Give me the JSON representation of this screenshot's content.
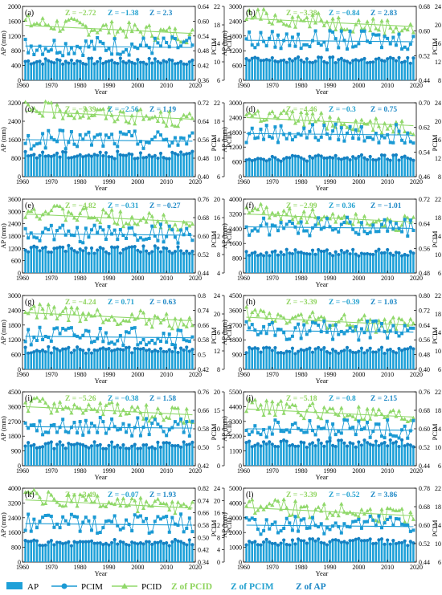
{
  "colors": {
    "ap": "#1ea0d8",
    "pcim": "#1b9ad4",
    "pcid": "#90d86a",
    "z_pcid": "#8fd45e",
    "z_pcim": "#23a1cf",
    "z_ap": "#1e88c6"
  },
  "legend": {
    "ap": "AP",
    "pcim": "PCIM",
    "pcid": "PCID",
    "z_pcid": "Z of PCID",
    "z_pcim": "Z of PCIM",
    "z_ap": "Z of AP"
  },
  "chart_data": [
    {
      "type": "bar",
      "panel": "(a)",
      "xlabel": "Year",
      "ylabel": "AP (mm)",
      "y2label": "PCIM",
      "y3label": "PCID",
      "x": [
        1960,
        2020
      ],
      "xticks": [
        1960,
        1970,
        1980,
        1990,
        2000,
        2010,
        2020
      ],
      "ap_ticks": [
        "0",
        "400",
        "800",
        "1200",
        "1600",
        "2000"
      ],
      "pcim_ticks": [
        "0.36",
        "0.42",
        "0.48",
        "0.54",
        "0.60",
        "0.64"
      ],
      "pcid_ticks": [
        "6",
        "10",
        "14",
        "18",
        "22"
      ],
      "ap_mean": 490,
      "pcim_mean": 0.49,
      "pcid_mean": 17.1,
      "z": {
        "pcid": "Z = −2.72",
        "pcim": "Z = −1.38",
        "ap": "Z = 2.3"
      }
    },
    {
      "type": "bar",
      "panel": "(b)",
      "xlabel": "Year",
      "ylabel": "AP (mm)",
      "y2label": "PCIM",
      "y3label": "PCID",
      "x": [
        1960,
        2020
      ],
      "xticks": [
        1960,
        1970,
        1980,
        1990,
        2000,
        2010,
        2020
      ],
      "ap_ticks": [
        "0",
        "600",
        "1200",
        "1800",
        "2400",
        "3000"
      ],
      "pcim_ticks": [
        "0.44",
        "0.52",
        "0.60",
        "0.68"
      ],
      "pcid_ticks": [
        "8",
        "12",
        "16",
        "20",
        "24"
      ],
      "ap_mean": 780,
      "pcim_mean": 0.57,
      "pcid_mean": 20.6,
      "z": {
        "pcid": "Z = −3.38",
        "pcim": "Z = −0.84",
        "ap": "Z = 2.83"
      }
    },
    {
      "type": "bar",
      "panel": "(c)",
      "xlabel": "Year",
      "ylabel": "AP (mm)",
      "y2label": "PCIM",
      "y3label": "PCID",
      "x": [
        1960,
        2020
      ],
      "xticks": [
        1960,
        1970,
        1980,
        1990,
        2000,
        2010,
        2020
      ],
      "ap_ticks": [
        "0",
        "800",
        "1600",
        "2400",
        "3200"
      ],
      "pcim_ticks": [
        "0.40",
        "0.48",
        "0.56",
        "0.64",
        "0.72"
      ],
      "pcid_ticks": [
        "6",
        "10",
        "14",
        "18",
        "22"
      ],
      "ap_mean": 900,
      "pcim_mean": 0.56,
      "pcid_mean": 19.4,
      "z": {
        "pcid": "Z = −5.39",
        "pcim": "Z = −2.56",
        "ap": "Z = 1.19"
      }
    },
    {
      "type": "bar",
      "panel": "(d)",
      "xlabel": "Year",
      "ylabel": "AP (mm)",
      "y2label": "PCIM",
      "y3label": "PCID",
      "x": [
        1960,
        2020
      ],
      "xticks": [
        1960,
        1970,
        1980,
        1990,
        2000,
        2010,
        2020
      ],
      "ap_ticks": [
        "0",
        "600",
        "1200",
        "1800",
        "2400",
        "3000"
      ],
      "pcim_ticks": [
        "0.46",
        "0.54",
        "0.62",
        "0.70"
      ],
      "pcid_ticks": [
        "8",
        "12",
        "16",
        "20",
        "24"
      ],
      "ap_mean": 720,
      "pcim_mean": 0.6,
      "pcid_mean": 20.0,
      "z": {
        "pcid": "Z = −4.46",
        "pcim": "Z = −0.3",
        "ap": "Z = 0.75"
      }
    },
    {
      "type": "bar",
      "panel": "(e)",
      "xlabel": "Year",
      "ylabel": "AP (mm)",
      "y2label": "PCIM",
      "y3label": "PCID",
      "x": [
        1960,
        2020
      ],
      "xticks": [
        1960,
        1970,
        1980,
        1990,
        2000,
        2010,
        2020
      ],
      "ap_ticks": [
        "0",
        "600",
        "1200",
        "1800",
        "2400",
        "3000",
        "3600"
      ],
      "pcim_ticks": [
        "0.44",
        "0.52",
        "0.60",
        "0.68",
        "0.76"
      ],
      "pcid_ticks": [
        "4",
        "8",
        "12",
        "16",
        "20"
      ],
      "ap_mean": 1100,
      "pcim_mean": 0.61,
      "pcid_mean": 16.0,
      "z": {
        "pcid": "Z = −4.82",
        "pcim": "Z = −0.31",
        "ap": "Z = −0.27"
      }
    },
    {
      "type": "bar",
      "panel": "(f)",
      "xlabel": "Year",
      "ylabel": "AP (mm)",
      "y2label": "PCIM",
      "y3label": "PCID",
      "x": [
        1960,
        2020
      ],
      "xticks": [
        1960,
        1970,
        1980,
        1990,
        2000,
        2010,
        2020
      ],
      "ap_ticks": [
        "0",
        "800",
        "1600",
        "2400",
        "3200",
        "4000"
      ],
      "pcim_ticks": [
        "0.48",
        "0.56",
        "0.64",
        "0.72"
      ],
      "pcid_ticks": [
        "6",
        "10",
        "14",
        "18",
        "22"
      ],
      "ap_mean": 1050,
      "pcim_mean": 0.63,
      "pcid_mean": 18.0,
      "z": {
        "pcid": "Z = −2.99",
        "pcim": "Z = 0.36",
        "ap": "Z = −1.01"
      }
    },
    {
      "type": "bar",
      "panel": "(g)",
      "xlabel": "Year",
      "ylabel": "AP (mm)",
      "y2label": "PCIM",
      "y3label": "PCID",
      "x": [
        1960,
        2020
      ],
      "xticks": [
        1960,
        1970,
        1980,
        1990,
        2000,
        2010,
        2020
      ],
      "ap_ticks": [
        "0",
        "600",
        "1200",
        "1800",
        "2400",
        "3000"
      ],
      "pcim_ticks": [
        "0.42",
        "0.5",
        "0.58",
        "0.66",
        "0.74",
        "0.8"
      ],
      "pcid_ticks": [
        "8",
        "12",
        "16",
        "20",
        "24"
      ],
      "ap_mean": 750,
      "pcim_mean": 0.59,
      "pcid_mean": 19.5,
      "z": {
        "pcid": "Z = −4.24",
        "pcim": "Z = 0.71",
        "ap": "Z = 0.63"
      }
    },
    {
      "type": "bar",
      "panel": "(h)",
      "xlabel": "Year",
      "ylabel": "AP (mm)",
      "y2label": "PCIM",
      "y3label": "PCID",
      "x": [
        1960,
        2020
      ],
      "xticks": [
        1960,
        1970,
        1980,
        1990,
        2000,
        2010,
        2020
      ],
      "ap_ticks": [
        "0",
        "900",
        "1800",
        "2700",
        "3600",
        "4500"
      ],
      "pcim_ticks": [
        "0.40",
        "0.48",
        "0.56",
        "0.64",
        "0.72",
        "0.80"
      ],
      "pcid_ticks": [
        "6",
        "10",
        "14",
        "18",
        "22"
      ],
      "ap_mean": 1100,
      "pcim_mean": 0.61,
      "pcid_mean": 16.5,
      "z": {
        "pcid": "Z = −3.39",
        "pcim": "Z = −0.39",
        "ap": "Z = 1.03"
      }
    },
    {
      "type": "bar",
      "panel": "(i)",
      "xlabel": "Year",
      "ylabel": "AP (mm)",
      "y2label": "PCIM",
      "y3label": "PCID",
      "x": [
        1960,
        2020
      ],
      "xticks": [
        1960,
        1970,
        1980,
        1990,
        2000,
        2010,
        2020
      ],
      "ap_ticks": [
        "0",
        "900",
        "1800",
        "2700",
        "3600",
        "4500"
      ],
      "pcim_ticks": [
        "0.42",
        "0.50",
        "0.58",
        "0.66",
        "0.76"
      ],
      "pcid_ticks": [
        "0",
        "5",
        "10",
        "15",
        "20"
      ],
      "ap_mean": 1200,
      "pcim_mean": 0.6,
      "pcid_mean": 15.0,
      "z": {
        "pcid": "Z = −5.26",
        "pcim": "Z = −0.38",
        "ap": "Z = 1.58"
      }
    },
    {
      "type": "bar",
      "panel": "(j)",
      "xlabel": "Year",
      "ylabel": "AP (mm)",
      "y2label": "PCIM",
      "y3label": "PCID",
      "x": [
        1960,
        2020
      ],
      "xticks": [
        1960,
        1970,
        1980,
        1990,
        2000,
        2010,
        2020
      ],
      "ap_ticks": [
        "0",
        "1100",
        "2200",
        "3300",
        "4400",
        "5500"
      ],
      "pcim_ticks": [
        "0.44",
        "0.52",
        "0.60",
        "0.68",
        "0.76"
      ],
      "pcid_ticks": [
        "6",
        "10",
        "14",
        "18",
        "22"
      ],
      "ap_mean": 1600,
      "pcim_mean": 0.6,
      "pcid_mean": 17.5,
      "z": {
        "pcid": "Z = −5.18",
        "pcim": "Z = −0.8",
        "ap": "Z = 2.15"
      }
    },
    {
      "type": "bar",
      "panel": "(k)",
      "xlabel": "Year",
      "ylabel": "AP (mm)",
      "y2label": "PCIM",
      "y3label": "PCID",
      "x": [
        1960,
        2020
      ],
      "xticks": [
        1960,
        1970,
        1980,
        1990,
        2000,
        2010,
        2020
      ],
      "ap_ticks": [
        "0",
        "800",
        "1600",
        "2400",
        "3200",
        "4000"
      ],
      "pcim_ticks": [
        "0.34",
        "0.42",
        "0.50",
        "0.58",
        "0.66",
        "0.74",
        "0.82"
      ],
      "pcid_ticks": [
        "0",
        "4",
        "8",
        "12",
        "16",
        "20",
        "24"
      ],
      "ap_mean": 1000,
      "pcim_mean": 0.59,
      "pcid_mean": 19.0,
      "z": {
        "pcid": "Z = −3.49",
        "pcim": "Z = −0.07",
        "ap": "Z = 1.93"
      }
    },
    {
      "type": "bar",
      "panel": "(l)",
      "xlabel": "Year",
      "ylabel": "AP (mm)",
      "y2label": "PCIM",
      "y3label": "PCID",
      "x": [
        1960,
        2020
      ],
      "xticks": [
        1960,
        1970,
        1980,
        1990,
        2000,
        2010,
        2020
      ],
      "ap_ticks": [
        "0",
        "1000",
        "2000",
        "3000",
        "4000",
        "5000"
      ],
      "pcim_ticks": [
        "0.44",
        "0.52",
        "0.60",
        "0.68",
        "0.78"
      ],
      "pcid_ticks": [
        "6",
        "10",
        "14",
        "18",
        "22"
      ],
      "ap_mean": 1300,
      "pcim_mean": 0.61,
      "pcid_mean": 17.0,
      "z": {
        "pcid": "Z = −3.39",
        "pcim": "Z = −0.52",
        "ap": "Z = 3.86"
      }
    }
  ]
}
